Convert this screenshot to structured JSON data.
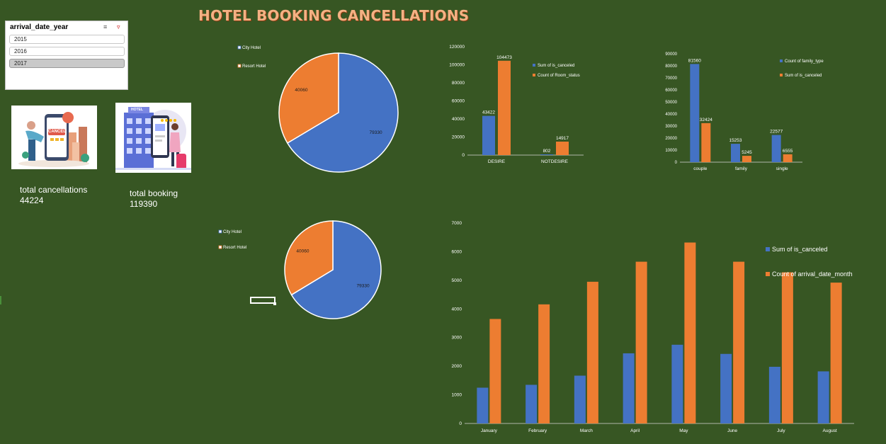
{
  "title": "HOTEL BOOKING CANCELLATIONS",
  "colors": {
    "background": "#375623",
    "blue": "#4472C4",
    "orange": "#ED7D31",
    "title": "#F4B183"
  },
  "slicer": {
    "header": "arrival_date_year",
    "icons": [
      "multi-select-icon",
      "clear-filter-icon"
    ],
    "items": [
      {
        "label": "2015",
        "selected": false
      },
      {
        "label": "2016",
        "selected": false
      },
      {
        "label": "2017",
        "selected": true
      }
    ]
  },
  "kpis": {
    "cancellations": {
      "label": "total cancellations",
      "value": "44224"
    },
    "bookings": {
      "label": "total booking",
      "value": "119390"
    }
  },
  "images": {
    "cancel": "cancel-booking-illustration",
    "hotel": "hotel-illustration"
  },
  "chart_data": [
    {
      "type": "pie",
      "title": "",
      "legend": [
        "City Hotel",
        "Resort Hotel"
      ],
      "labels": [
        "City Hotel",
        "Resort Hotel"
      ],
      "values": [
        79330,
        40060
      ],
      "legend_position": "top-left"
    },
    {
      "type": "bar",
      "title": "",
      "categories": [
        "DESIRE",
        "NOTDESIRE"
      ],
      "series": [
        {
          "name": "Sum of is_canceled",
          "values": [
            43422,
            802
          ]
        },
        {
          "name": "Count of Room_status",
          "values": [
            104473,
            14917
          ]
        }
      ],
      "ylim": [
        0,
        120000
      ],
      "yticks": [
        0,
        20000,
        40000,
        60000,
        80000,
        100000,
        120000
      ],
      "grid": false,
      "legend_position": "right"
    },
    {
      "type": "bar",
      "title": "",
      "categories": [
        "couple",
        "family",
        "single"
      ],
      "series": [
        {
          "name": "Count of family_type",
          "values": [
            81560,
            15253,
            22577
          ]
        },
        {
          "name": "Sum of is_canceled",
          "values": [
            32424,
            5245,
            6555
          ]
        }
      ],
      "ylim": [
        0,
        90000
      ],
      "yticks": [
        0,
        10000,
        20000,
        30000,
        40000,
        50000,
        60000,
        70000,
        80000,
        90000
      ],
      "grid": false,
      "legend_position": "top-right"
    },
    {
      "type": "pie",
      "title": "",
      "legend": [
        "City Hotel",
        "Resort Hotel"
      ],
      "labels": [
        "City Hotel",
        "Resort Hotel"
      ],
      "values": [
        79330,
        40060
      ],
      "legend_position": "top-left"
    },
    {
      "type": "bar",
      "title": "",
      "categories": [
        "January",
        "February",
        "March",
        "April",
        "May",
        "June",
        "July",
        "August"
      ],
      "series": [
        {
          "name": "Sum of is_canceled",
          "values": [
            1250,
            1350,
            1670,
            2450,
            2750,
            2430,
            1980,
            1820
          ]
        },
        {
          "name": "Count of arrival_date_month",
          "values": [
            3650,
            4160,
            4950,
            5650,
            6320,
            5650,
            5280,
            4920
          ]
        }
      ],
      "ylim": [
        0,
        7000
      ],
      "yticks": [
        0,
        1000,
        2000,
        3000,
        4000,
        5000,
        6000,
        7000
      ],
      "grid": false,
      "legend_position": "top-right"
    }
  ]
}
